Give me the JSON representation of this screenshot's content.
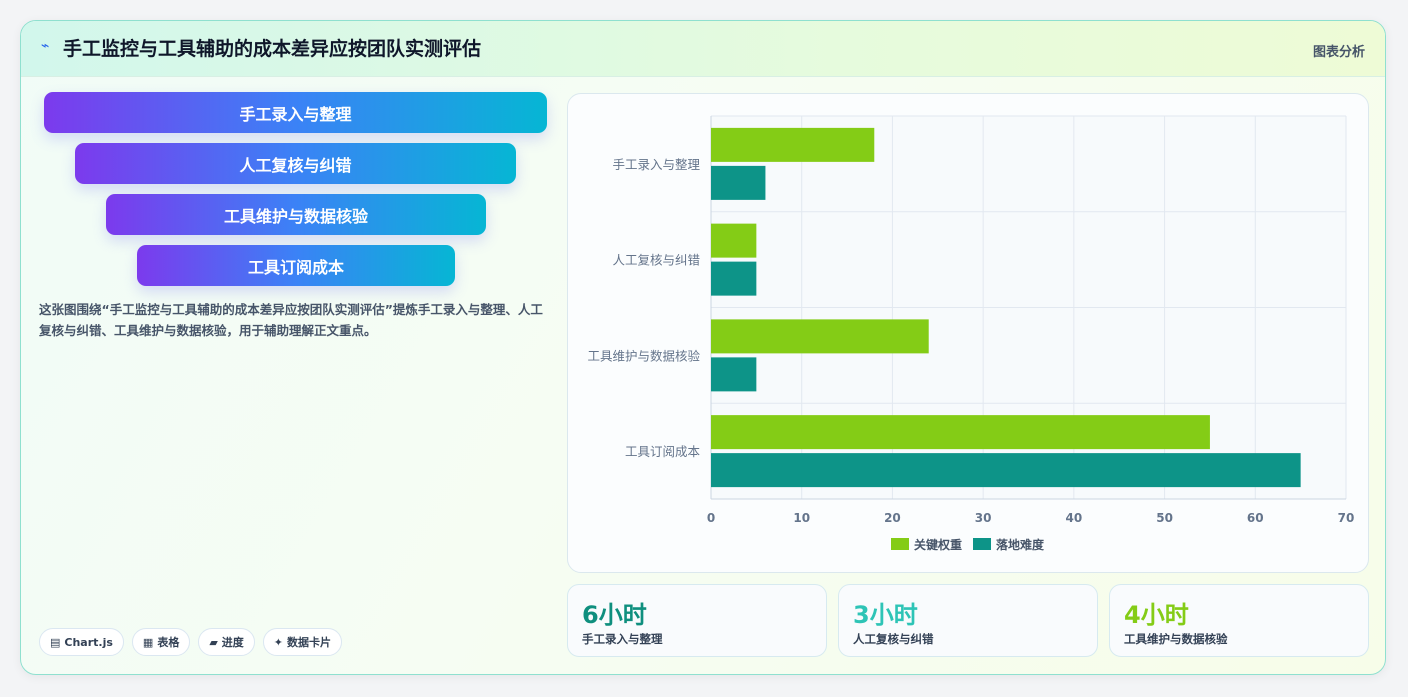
{
  "header": {
    "icon": "spark-icon",
    "title": "手工监控与工具辅助的成本差异应按团队实测评估",
    "tag": "图表分析"
  },
  "funnel": {
    "items": [
      {
        "label": "手工录入与整理"
      },
      {
        "label": "人工复核与纠错"
      },
      {
        "label": "工具维护与数据核验"
      },
      {
        "label": "工具订阅成本"
      }
    ]
  },
  "description": "这张图围绕“手工监控与工具辅助的成本差异应按团队实测评估”提炼手工录入与整理、人工复核与纠错、工具维护与数据核验，用于辅助理解正文重点。",
  "chips": [
    {
      "icon": "chart-icon",
      "label": "Chart.js"
    },
    {
      "icon": "table-icon",
      "label": "表格"
    },
    {
      "icon": "progress-icon",
      "label": "进度"
    },
    {
      "icon": "sparkle-icon",
      "label": "数据卡片"
    }
  ],
  "stats": [
    {
      "value": "6小时",
      "label": "手工录入与整理",
      "color": "#0f8f7e"
    },
    {
      "value": "3小时",
      "label": "人工复核与纠错",
      "color": "#2ec4b6"
    },
    {
      "value": "4小时",
      "label": "工具维护与数据核验",
      "color": "#84cc16"
    }
  ],
  "chart_data": {
    "type": "bar",
    "orientation": "horizontal",
    "categories": [
      "手工录入与整理",
      "人工复核与纠错",
      "工具维护与数据核验",
      "工具订阅成本"
    ],
    "series": [
      {
        "name": "关键权重",
        "values": [
          18,
          5,
          24,
          55
        ],
        "color": "#84cc16"
      },
      {
        "name": "落地难度",
        "values": [
          6,
          5,
          5,
          65
        ],
        "color": "#0d9488"
      }
    ],
    "xlim": [
      0,
      70
    ],
    "xticks": [
      0,
      10,
      20,
      30,
      40,
      50,
      60,
      70
    ],
    "grid": true,
    "legend": "bottom"
  }
}
